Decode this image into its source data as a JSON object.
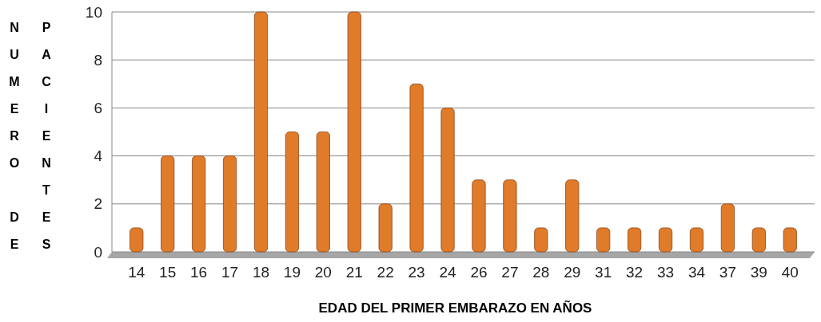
{
  "chart_data": {
    "type": "bar",
    "xlabel": "EDAD DEL PRIMER EMBARAZO EN AÑOS",
    "ylabel": "NUMERO DE PACIENTES",
    "categories": [
      "14",
      "15",
      "16",
      "17",
      "18",
      "19",
      "20",
      "21",
      "22",
      "23",
      "24",
      "26",
      "27",
      "28",
      "29",
      "31",
      "32",
      "33",
      "34",
      "37",
      "39",
      "40"
    ],
    "values": [
      1,
      4,
      4,
      4,
      10,
      5,
      5,
      10,
      2,
      7,
      6,
      3,
      3,
      1,
      3,
      1,
      1,
      1,
      1,
      2,
      1,
      1
    ],
    "color": "#e07b2a",
    "ylim": [
      0,
      10
    ],
    "yticks": [
      0,
      2,
      4,
      6,
      8,
      10
    ],
    "grid": "y"
  }
}
